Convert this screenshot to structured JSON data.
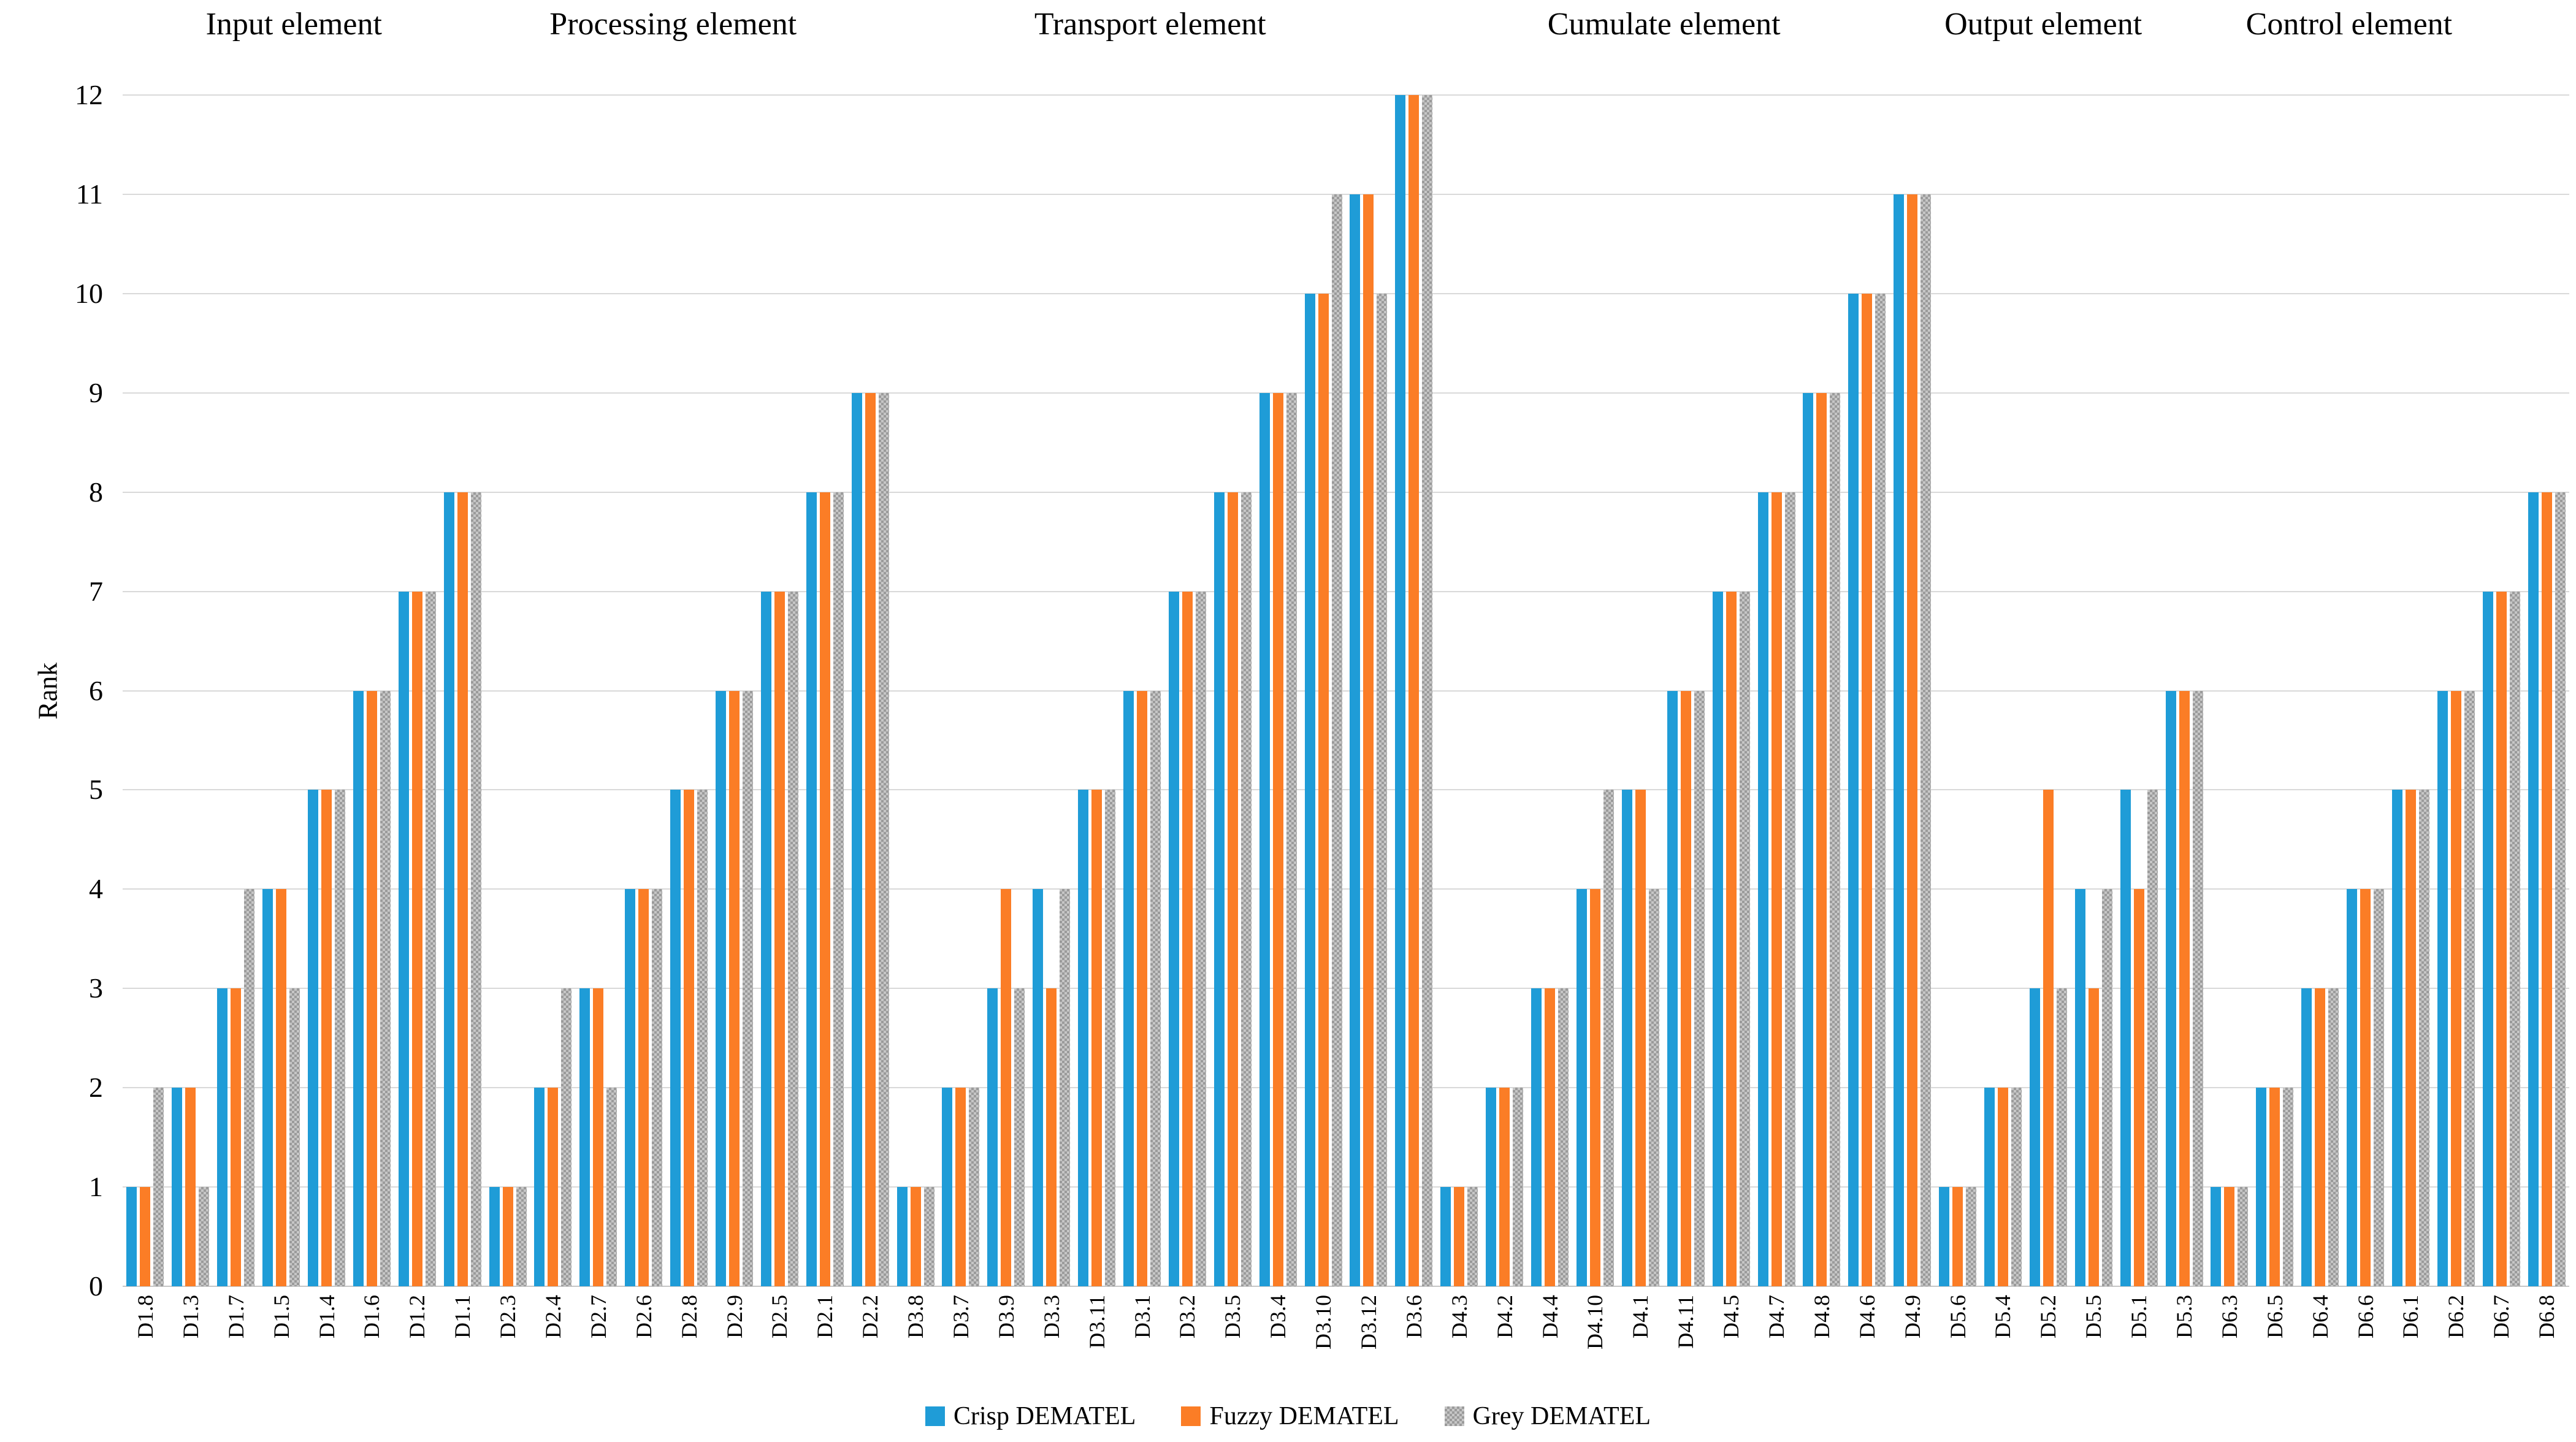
{
  "chart_data": {
    "type": "bar",
    "title": "",
    "xlabel": "",
    "ylabel": "Rank",
    "ylim": [
      0,
      12
    ],
    "ytick_step": 1,
    "grid": true,
    "legend_position": "bottom",
    "series_names": [
      "Crisp DEMATEL",
      "Fuzzy DEMATEL",
      "Grey DEMATEL"
    ],
    "series_colors": {
      "crisp": "#1f9cd7",
      "fuzzy": "#fb7d26",
      "grey_base": "#c6c6c6",
      "grey_dot": "#9b9b9b"
    },
    "sections": [
      {
        "label": "Input element",
        "categories": [
          "D1.8",
          "D1.3",
          "D1.7",
          "D1.5",
          "D1.4",
          "D1.6",
          "D1.2",
          "D1.1"
        ],
        "series": [
          {
            "name": "Crisp DEMATEL",
            "values": [
              1,
              2,
              3,
              4,
              5,
              6,
              7,
              8
            ]
          },
          {
            "name": "Fuzzy DEMATEL",
            "values": [
              1,
              2,
              3,
              4,
              5,
              6,
              7,
              8
            ]
          },
          {
            "name": "Grey DEMATEL",
            "values": [
              2,
              1,
              4,
              3,
              5,
              6,
              7,
              8
            ]
          }
        ]
      },
      {
        "label": "Processing element",
        "categories": [
          "D2.3",
          "D2.4",
          "D2.7",
          "D2.6",
          "D2.8",
          "D2.9",
          "D2.5",
          "D2.1",
          "D2.2"
        ],
        "series": [
          {
            "name": "Crisp DEMATEL",
            "values": [
              1,
              2,
              3,
              4,
              5,
              6,
              7,
              8,
              9
            ]
          },
          {
            "name": "Fuzzy DEMATEL",
            "values": [
              1,
              2,
              3,
              4,
              5,
              6,
              7,
              8,
              9
            ]
          },
          {
            "name": "Grey DEMATEL",
            "values": [
              1,
              3,
              2,
              4,
              5,
              6,
              7,
              8,
              9
            ]
          }
        ]
      },
      {
        "label": "Transport element",
        "categories": [
          "D3.8",
          "D3.7",
          "D3.9",
          "D3.3",
          "D3.11",
          "D3.1",
          "D3.2",
          "D3.5",
          "D3.4",
          "D3.10",
          "D3.12",
          "D3.6"
        ],
        "series": [
          {
            "name": "Crisp DEMATEL",
            "values": [
              1,
              2,
              3,
              4,
              5,
              6,
              7,
              8,
              9,
              10,
              11,
              12
            ]
          },
          {
            "name": "Fuzzy DEMATEL",
            "values": [
              1,
              2,
              4,
              3,
              5,
              6,
              7,
              8,
              9,
              10,
              11,
              12
            ]
          },
          {
            "name": "Grey DEMATEL",
            "values": [
              1,
              2,
              3,
              4,
              5,
              6,
              7,
              8,
              9,
              11,
              10,
              12
            ]
          }
        ]
      },
      {
        "label": "Cumulate element",
        "categories": [
          "D4.3",
          "D4.2",
          "D4.4",
          "D4.10",
          "D4.1",
          "D4.11",
          "D4.5",
          "D4.7",
          "D4.8",
          "D4.6",
          "D4.9"
        ],
        "series": [
          {
            "name": "Crisp DEMATEL",
            "values": [
              1,
              2,
              3,
              4,
              5,
              6,
              7,
              8,
              9,
              10,
              11
            ]
          },
          {
            "name": "Fuzzy DEMATEL",
            "values": [
              1,
              2,
              3,
              4,
              5,
              6,
              7,
              8,
              9,
              10,
              11
            ]
          },
          {
            "name": "Grey DEMATEL",
            "values": [
              1,
              2,
              3,
              5,
              4,
              6,
              7,
              8,
              9,
              10,
              11
            ]
          }
        ]
      },
      {
        "label": "Output element",
        "categories": [
          "D5.6",
          "D5.4",
          "D5.2",
          "D5.5",
          "D5.1",
          "D5.3"
        ],
        "series": [
          {
            "name": "Crisp DEMATEL",
            "values": [
              1,
              2,
              3,
              4,
              5,
              6
            ]
          },
          {
            "name": "Fuzzy DEMATEL",
            "values": [
              1,
              2,
              5,
              3,
              4,
              6
            ]
          },
          {
            "name": "Grey DEMATEL",
            "values": [
              1,
              2,
              3,
              4,
              5,
              6
            ]
          }
        ]
      },
      {
        "label": "Control element",
        "categories": [
          "D6.3",
          "D6.5",
          "D6.4",
          "D6.6",
          "D6.1",
          "D6.2",
          "D6.7",
          "D6.8"
        ],
        "series": [
          {
            "name": "Crisp DEMATEL",
            "values": [
              1,
              2,
              3,
              4,
              5,
              6,
              7,
              8
            ]
          },
          {
            "name": "Fuzzy DEMATEL",
            "values": [
              1,
              2,
              3,
              4,
              5,
              6,
              7,
              8
            ]
          },
          {
            "name": "Grey DEMATEL",
            "values": [
              1,
              2,
              3,
              4,
              5,
              6,
              7,
              8
            ]
          }
        ]
      }
    ],
    "yticks": [
      0,
      1,
      2,
      3,
      4,
      5,
      6,
      7,
      8,
      9,
      10,
      11,
      12
    ]
  },
  "legend": {
    "items": [
      {
        "label": "Crisp DEMATEL",
        "swatch": "crisp"
      },
      {
        "label": "Fuzzy DEMATEL",
        "swatch": "fuzzy"
      },
      {
        "label": "Grey DEMATEL",
        "swatch": "grey"
      }
    ]
  }
}
